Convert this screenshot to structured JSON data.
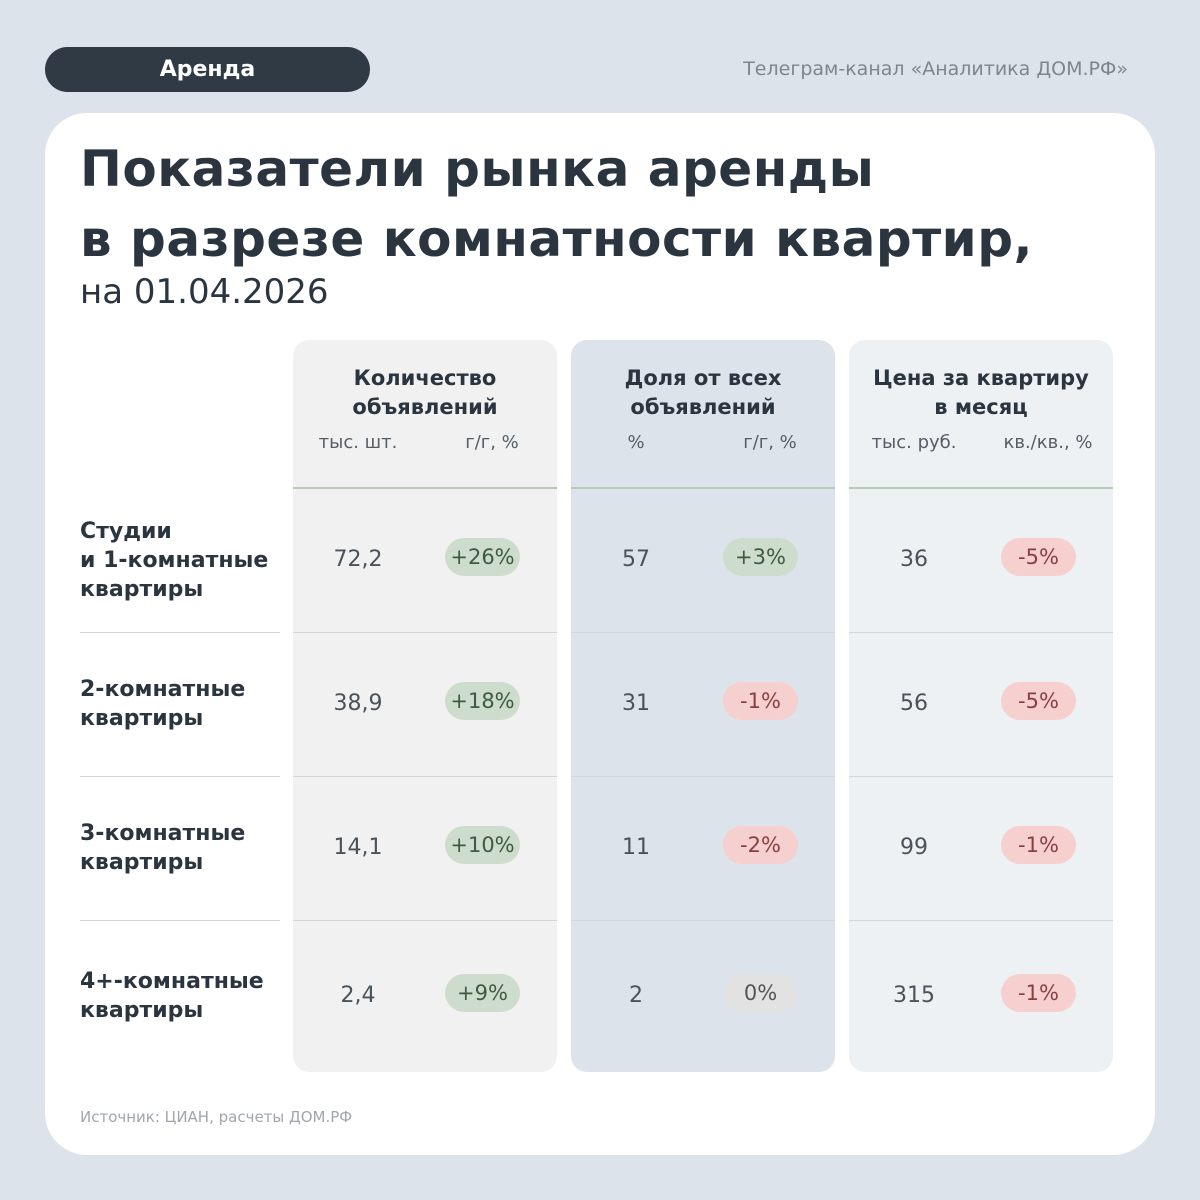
{
  "tag": "Аренда",
  "channel": "Телеграм-канал «Аналитика ДОМ.РФ»",
  "header": {
    "title": [
      "Показатели рынка аренды",
      "в разрезе комнатности квартир,"
    ],
    "date": "на 01.04.2026"
  },
  "table": {
    "columns": [
      {
        "title": [
          "Количество",
          "объявлений"
        ],
        "units": [
          "тыс. шт.",
          "г/г, %"
        ]
      },
      {
        "title": [
          "Доля от всех",
          "объявлений"
        ],
        "units": [
          "%",
          "г/г, %"
        ]
      },
      {
        "title": [
          "Цена за квартиру",
          "в месяц"
        ],
        "units": [
          "тыс. руб.",
          "кв./кв., %"
        ]
      }
    ],
    "rows": [
      {
        "label": [
          "Студии",
          "и 1-комнатные",
          "квартиры"
        ],
        "cells": [
          [
            "72,2",
            "+26%"
          ],
          [
            "57",
            "+3%"
          ],
          [
            "36",
            "-5%"
          ]
        ]
      },
      {
        "label": [
          "2-комнатные",
          "квартиры"
        ],
        "cells": [
          [
            "38,9",
            "+18%"
          ],
          [
            "31",
            "-1%"
          ],
          [
            "56",
            "-5%"
          ]
        ]
      },
      {
        "label": [
          "3-комнатные",
          "квартиры"
        ],
        "cells": [
          [
            "14,1",
            "+10%"
          ],
          [
            "11",
            "-2%"
          ],
          [
            "99",
            "-1%"
          ]
        ]
      },
      {
        "label": [
          "4+-комнатные",
          "квартиры"
        ],
        "cells": [
          [
            "2,4",
            "+9%"
          ],
          [
            "2",
            "0%"
          ],
          [
            "315",
            "-1%"
          ]
        ]
      }
    ]
  },
  "source": "Источник: ЦИАН, расчеты ДОМ.РФ"
}
